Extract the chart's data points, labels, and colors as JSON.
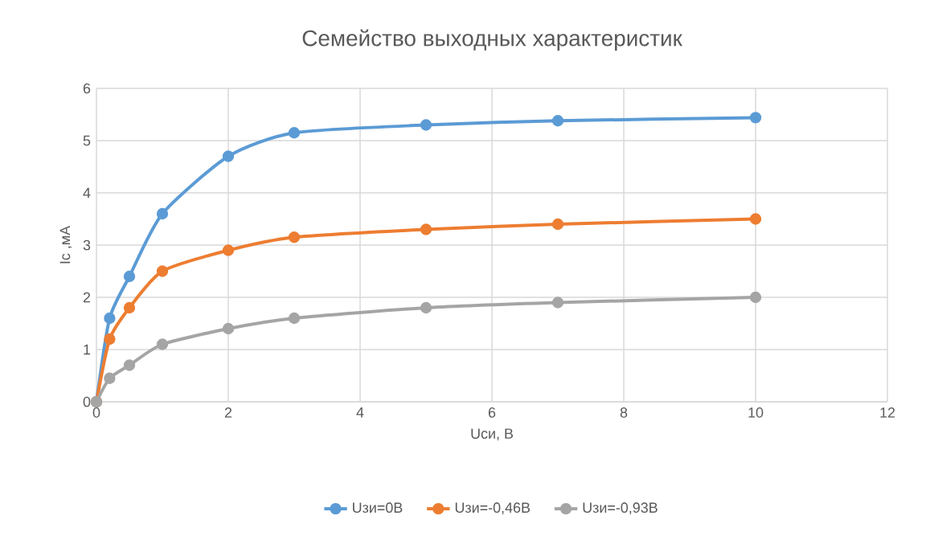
{
  "chart_data": {
    "type": "line",
    "title": "Семейство выходных характеристик",
    "xlabel": "Uси, В",
    "ylabel": "Ic ,мА",
    "xlim": [
      0,
      12
    ],
    "ylim": [
      0,
      6
    ],
    "xticks": [
      0,
      2,
      4,
      6,
      8,
      10,
      12
    ],
    "yticks": [
      0,
      1,
      2,
      3,
      4,
      5,
      6
    ],
    "grid": true,
    "legend": "bottom",
    "marker": "circle",
    "line_style": "solid",
    "series": [
      {
        "name": "Uзи=0В",
        "color": "#5b9bd5",
        "x": [
          0,
          0.2,
          0.5,
          1,
          2,
          3,
          5,
          7,
          10
        ],
        "values": [
          0,
          1.6,
          2.4,
          3.6,
          4.7,
          5.15,
          5.3,
          5.38,
          5.44
        ]
      },
      {
        "name": "Uзи=-0,46В",
        "color": "#ed7d31",
        "x": [
          0,
          0.2,
          0.5,
          1,
          2,
          3,
          5,
          7,
          10
        ],
        "values": [
          0,
          1.2,
          1.8,
          2.5,
          2.9,
          3.15,
          3.3,
          3.4,
          3.5
        ]
      },
      {
        "name": "Uзи=-0,93В",
        "color": "#a5a5a5",
        "x": [
          0,
          0.2,
          0.5,
          1,
          2,
          3,
          5,
          7,
          10
        ],
        "values": [
          0,
          0.45,
          0.7,
          1.1,
          1.4,
          1.6,
          1.8,
          1.9,
          2.0
        ]
      }
    ]
  }
}
